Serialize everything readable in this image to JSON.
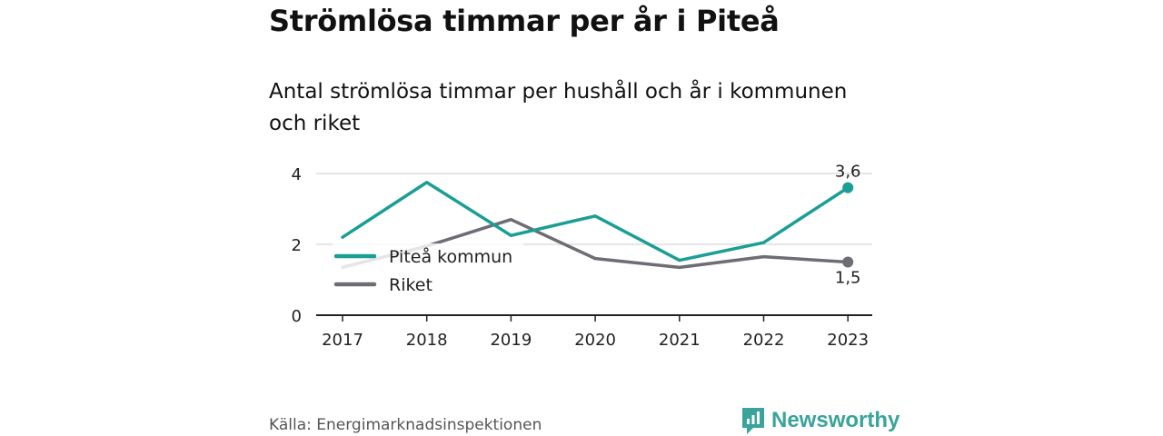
{
  "title": "Strömlösa timmar per år i Piteå",
  "subtitle": "Antal strömlösa timmar per hushåll och år i kommunen och riket",
  "source": "Källa: Energimarknadsinspektionen",
  "brand": {
    "name": "Newsworthy",
    "icon": "newsworthy-logo-icon",
    "color": "#3aa39a"
  },
  "chart_data": {
    "type": "line",
    "categories": [
      "2017",
      "2018",
      "2019",
      "2020",
      "2021",
      "2022",
      "2023"
    ],
    "ylim": [
      0,
      4
    ],
    "yticks": [
      "0",
      "2",
      "4"
    ],
    "grid": true,
    "legend_position": "left",
    "series": [
      {
        "name": "Piteå kommun",
        "color": "#1a9e96",
        "values": [
          2.2,
          3.75,
          2.25,
          2.8,
          1.55,
          2.05,
          3.6
        ],
        "end_label": "3,6"
      },
      {
        "name": "Riket",
        "color": "#6f6c74",
        "values": [
          1.35,
          1.95,
          2.7,
          1.6,
          1.35,
          1.65,
          1.5
        ],
        "end_label": "1,5"
      }
    ]
  }
}
